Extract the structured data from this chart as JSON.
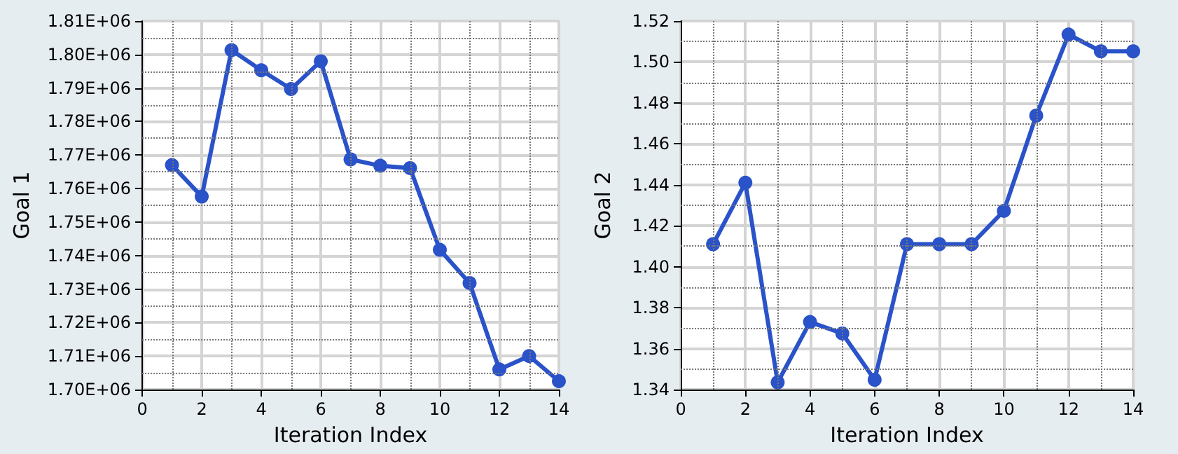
{
  "chart_data": [
    {
      "type": "line",
      "xlabel": "Iteration Index",
      "ylabel": "Goal 1",
      "x": [
        1,
        2,
        3,
        4,
        5,
        6,
        7,
        8,
        9,
        10,
        11,
        12,
        13,
        14
      ],
      "series": [
        {
          "color": "#2a52c9",
          "values": [
            1767000,
            1757600,
            1801300,
            1795300,
            1789700,
            1798000,
            1768700,
            1766800,
            1766100,
            1741700,
            1731800,
            1706000,
            1710000,
            1702500
          ]
        }
      ],
      "xlim": [
        0,
        14
      ],
      "xticks": [
        0,
        2,
        4,
        6,
        8,
        10,
        12,
        14
      ],
      "ylim": [
        1700000,
        1810000
      ],
      "yticks": [
        {
          "value": 1700000,
          "label": "1.70E+06"
        },
        {
          "value": 1710000,
          "label": "1.71E+06"
        },
        {
          "value": 1720000,
          "label": "1.72E+06"
        },
        {
          "value": 1730000,
          "label": "1.73E+06"
        },
        {
          "value": 1740000,
          "label": "1.74E+06"
        },
        {
          "value": 1750000,
          "label": "1.75E+06"
        },
        {
          "value": 1760000,
          "label": "1.76E+06"
        },
        {
          "value": 1770000,
          "label": "1.77E+06"
        },
        {
          "value": 1780000,
          "label": "1.78E+06"
        },
        {
          "value": 1790000,
          "label": "1.79E+06"
        },
        {
          "value": 1800000,
          "label": "1.80E+06"
        },
        {
          "value": 1810000,
          "label": "1.81E+06"
        }
      ],
      "grid": true,
      "marker": "circle",
      "line_style": "solid"
    },
    {
      "type": "line",
      "xlabel": "Iteration Index",
      "ylabel": "Goal 2",
      "x": [
        1,
        2,
        3,
        4,
        5,
        6,
        7,
        8,
        9,
        10,
        11,
        12,
        13,
        14
      ],
      "series": [
        {
          "color": "#2a52c9",
          "values": [
            1.411,
            1.441,
            1.3435,
            1.373,
            1.3674,
            1.3448,
            1.411,
            1.411,
            1.411,
            1.4273,
            1.4738,
            1.5134,
            1.5052,
            1.5052
          ]
        }
      ],
      "xlim": [
        0,
        14
      ],
      "xticks": [
        0,
        2,
        4,
        6,
        8,
        10,
        12,
        14
      ],
      "ylim": [
        1.34,
        1.52
      ],
      "yticks": [
        {
          "value": 1.34,
          "label": "1.34"
        },
        {
          "value": 1.36,
          "label": "1.36"
        },
        {
          "value": 1.38,
          "label": "1.38"
        },
        {
          "value": 1.4,
          "label": "1.40"
        },
        {
          "value": 1.42,
          "label": "1.42"
        },
        {
          "value": 1.44,
          "label": "1.44"
        },
        {
          "value": 1.46,
          "label": "1.46"
        },
        {
          "value": 1.48,
          "label": "1.48"
        },
        {
          "value": 1.5,
          "label": "1.50"
        },
        {
          "value": 1.52,
          "label": "1.52"
        }
      ],
      "grid": true,
      "marker": "circle",
      "line_style": "solid"
    }
  ]
}
